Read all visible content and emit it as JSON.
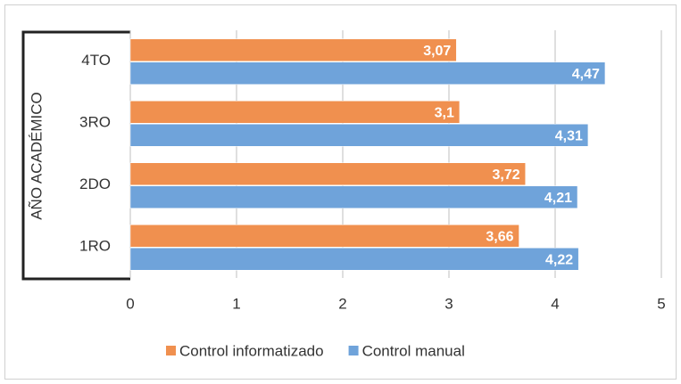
{
  "chart_data": {
    "type": "hbar",
    "ylabel": "AÑO ACADÉMICO",
    "categories": [
      "4TO",
      "3RO",
      "2DO",
      "1RO"
    ],
    "series": [
      {
        "name": "Control informatizado",
        "color": "#f0904f",
        "values": [
          3.07,
          3.1,
          3.72,
          3.66
        ],
        "value_labels": [
          "3,07",
          "3,1",
          "3,72",
          "3,66"
        ]
      },
      {
        "name": "Control manual",
        "color": "#6fa3da",
        "values": [
          4.47,
          4.31,
          4.21,
          4.22
        ],
        "value_labels": [
          "4,47",
          "4,31",
          "4,21",
          "4,22"
        ]
      }
    ],
    "xlim": [
      0,
      5
    ],
    "xticks": [
      0,
      1,
      2,
      3,
      4,
      5
    ],
    "grid": true,
    "legend": "bottom"
  }
}
